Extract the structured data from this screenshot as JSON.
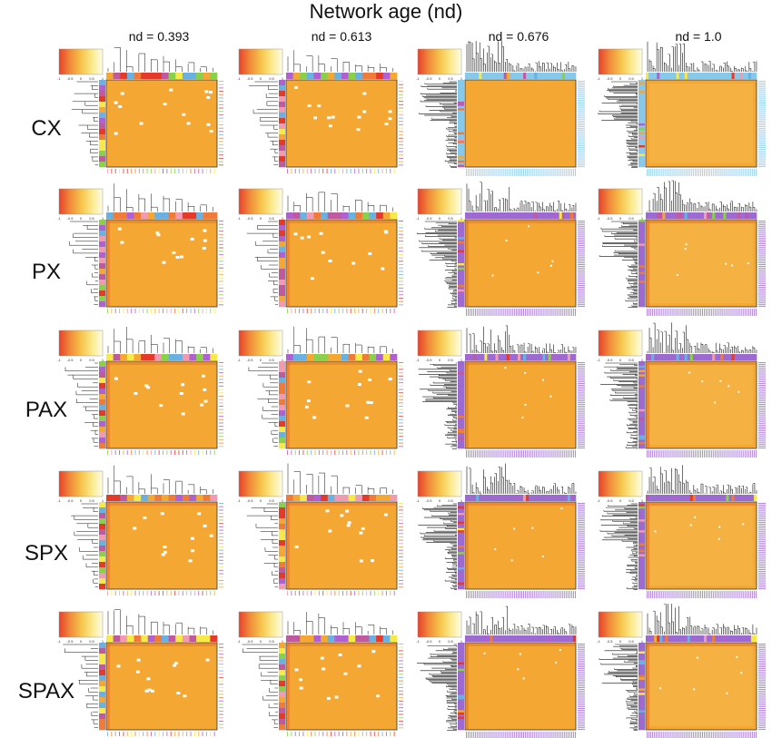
{
  "figure": {
    "title": "Network age (nd)",
    "columns": [
      {
        "label": "nd = 0.393"
      },
      {
        "label": "nd = 0.613"
      },
      {
        "label": "nd = 0.676"
      },
      {
        "label": "nd = 1.0"
      }
    ],
    "rows": [
      {
        "label": "CX"
      },
      {
        "label": "PX"
      },
      {
        "label": "PAX"
      },
      {
        "label": "SPX"
      },
      {
        "label": "SPAX"
      }
    ],
    "colorkey": {
      "tick_labels": [
        "-1",
        "-0.5",
        "0",
        "0.5",
        "1"
      ],
      "gradient": [
        "#e8402a",
        "#f08a3a",
        "#f6c24a",
        "#fbe98a",
        "#fffde8"
      ]
    },
    "colors": {
      "heatmap_fill": "#f4a733",
      "heatmap_fill_light": "#f5b94e",
      "border": "#333333",
      "dendrogram": "#111111",
      "bar_palette": [
        "#e53a2a",
        "#f4a733",
        "#c05aa0",
        "#f7e94a",
        "#8ad04a",
        "#f07a3a",
        "#6ab0e0",
        "#b060d0",
        "#f29ab0"
      ],
      "dense_bar_cyan": "#88c8ea",
      "dense_bar_purple": "#9c6ad0"
    }
  }
}
